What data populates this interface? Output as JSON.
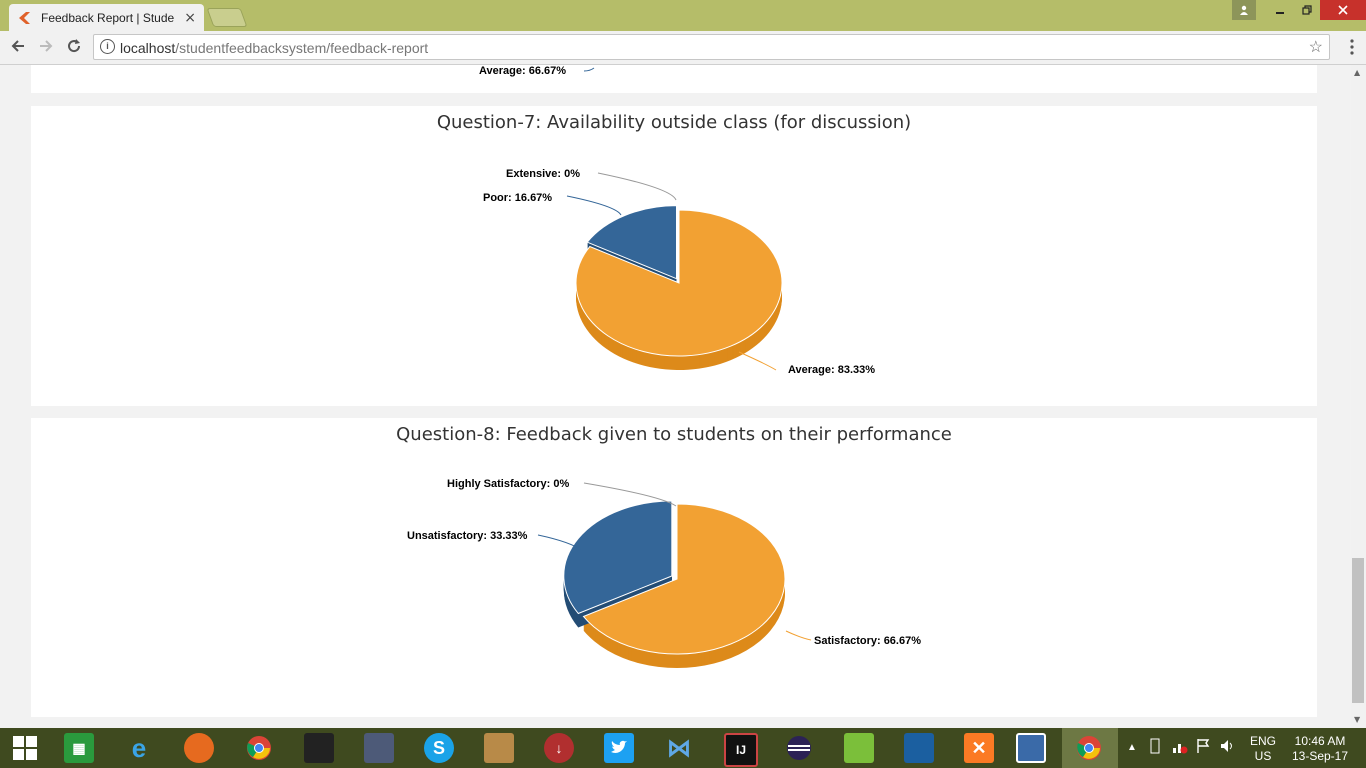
{
  "browser": {
    "tab_title": "Feedback Report | Stude",
    "tab_close": "×",
    "url_host": "localhost",
    "url_path": "/studentfeedbacksystem/feedback-report"
  },
  "top_remnant": {
    "label": "Average: 66.67%"
  },
  "colors": {
    "orange": "#f2a133",
    "orange_dark": "#dd8a1a",
    "blue": "#346698",
    "blue_dark": "#244d75"
  },
  "chart_data": [
    {
      "type": "pie",
      "title": "Question-7: Availability outside class (for discussion)",
      "slices": [
        {
          "label": "Extensive",
          "value": 0,
          "text": "Extensive: 0%"
        },
        {
          "label": "Poor",
          "value": 16.67,
          "text": "Poor: 16.67%"
        },
        {
          "label": "Average",
          "value": 83.33,
          "text": "Average: 83.33%"
        }
      ]
    },
    {
      "type": "pie",
      "title": "Question-8: Feedback given to students on their performance",
      "slices": [
        {
          "label": "Highly Satisfactory",
          "value": 0,
          "text": "Highly Satisfactory: 0%"
        },
        {
          "label": "Unsatisfactory",
          "value": 33.33,
          "text": "Unsatisfactory: 33.33%"
        },
        {
          "label": "Satisfactory",
          "value": 66.67,
          "text": "Satisfactory: 66.67%"
        }
      ]
    }
  ],
  "taskbar": {
    "lang_top": "ENG",
    "lang_bottom": "US",
    "time": "10:46 AM",
    "date": "13-Sep-17"
  }
}
